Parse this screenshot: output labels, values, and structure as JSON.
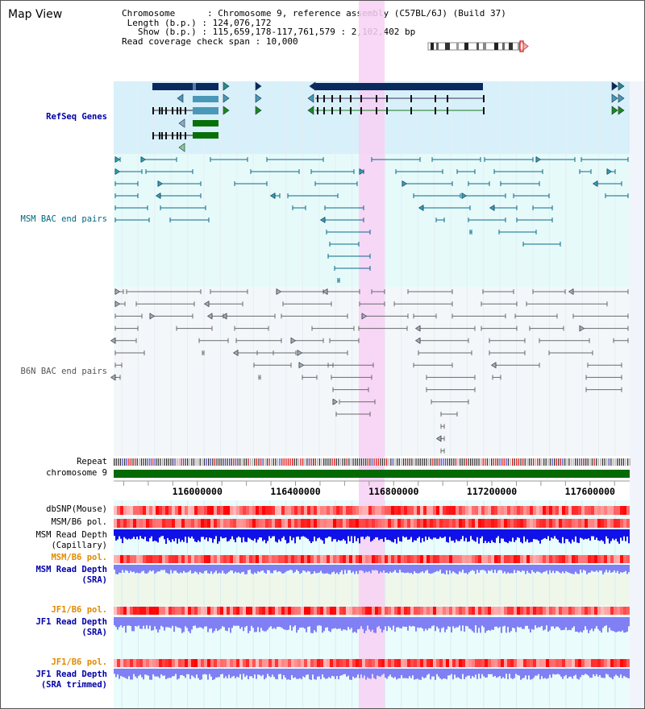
{
  "title": "Map View",
  "info": {
    "chromosome_key": "Chromosome",
    "chromosome_val": "Chromosome 9, reference assembly (C57BL/6J) (Build 37)",
    "length_key": "Length (b.p.)",
    "length_val": "124,076,172",
    "show_key": "Show (b.p.)",
    "show_val": "115,659,178-117,761,579 : 2,102,402 bp",
    "coverage_key": "Read coverage check span",
    "coverage_val": "10,000"
  },
  "tracks": {
    "refseq": "RefSeq Genes",
    "msm_bac": "MSM BAC end pairs",
    "b6n_bac": "B6N BAC end pairs",
    "repeat": "Repeat",
    "chromosome": "chromosome 9",
    "dbsnp": "dbSNP(Mouse)",
    "msm_b6_pol": "MSM/B6 pol.",
    "msm_read_depth_cap_1": "MSM Read Depth",
    "msm_read_depth_cap_2": "(Capillary)",
    "msm_b6_pol_2": "MSM/B6 pol.",
    "msm_read_depth_sra_1": "MSM Read Depth",
    "msm_read_depth_sra_2": "(SRA)",
    "jf1_b6_pol": "JF1/B6 pol.",
    "jf1_read_depth_sra_1": "JF1 Read Depth",
    "jf1_read_depth_sra_2": "(SRA)",
    "jf1_b6_pol_2": "JF1/B6 pol.",
    "jf1_read_depth_trim_1": "JF1 Read Depth",
    "jf1_read_depth_trim_2": "(SRA trimmed)"
  },
  "axis": {
    "ticks": [
      "116000000",
      "116400000",
      "116800000",
      "117200000",
      "117600000"
    ],
    "tick_values": [
      116000000,
      116400000,
      116800000,
      117200000,
      117600000
    ],
    "range": [
      115659178,
      117761579
    ]
  },
  "colors": {
    "highlight": "#f8d0f4",
    "refseq_bg": "#d8f0fa",
    "bac_bg": "#e6fafa",
    "navy": "#0a2a5e",
    "teal_gene": "#4a98b8",
    "green_gene": "#087008",
    "msm_line": "#0a6a88",
    "b6n_line": "#666666",
    "pol_red": "#ee3030",
    "depth_blue": "#1010e8",
    "depth_light": "#8080f4"
  }
}
